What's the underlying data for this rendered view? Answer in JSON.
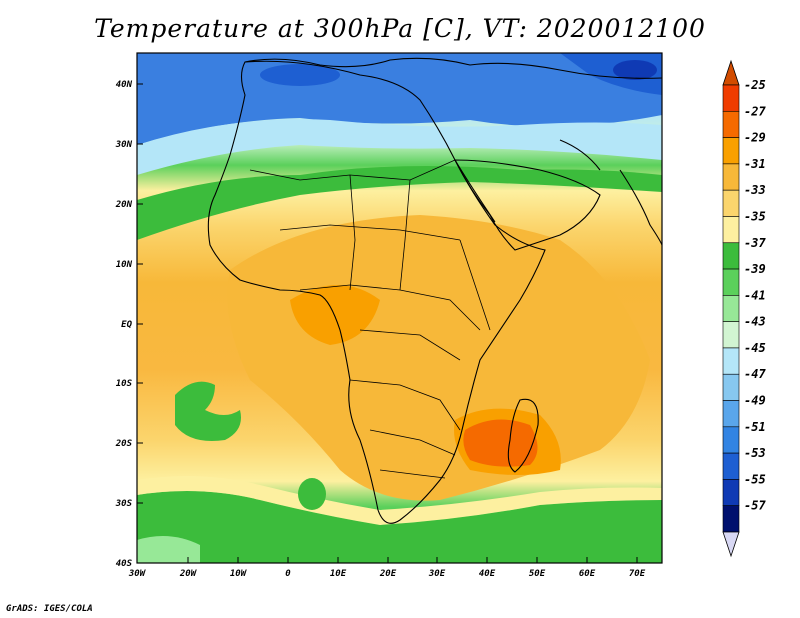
{
  "title": "Temperature at 300hPa [C], VT: 2020012100",
  "credit": "GrADS: IGES/COLA",
  "map": {
    "lat_labels": [
      "40N",
      "30N",
      "20N",
      "10N",
      "EQ",
      "10S",
      "20S",
      "30S",
      "40S"
    ],
    "lon_labels": [
      "30W",
      "20W",
      "10W",
      "0",
      "10E",
      "20E",
      "30E",
      "40E",
      "50E",
      "60E",
      "70E"
    ]
  },
  "colorbar": {
    "labels": [
      "-25",
      "-27",
      "-29",
      "-31",
      "-33",
      "-35",
      "-37",
      "-39",
      "-41",
      "-43",
      "-45",
      "-47",
      "-49",
      "-51",
      "-53",
      "-55",
      "-57"
    ],
    "colors": [
      "#f03c00",
      "#f56a00",
      "#f9a000",
      "#f7b839",
      "#fbd56d",
      "#fdf0a0",
      "#3cbc3c",
      "#5bd05b",
      "#97e897",
      "#d2f5d2",
      "#b4e6f8",
      "#87c8f0",
      "#5aa6eb",
      "#3284e3",
      "#1e5fd2",
      "#0f3ab4",
      "#00106e"
    ],
    "top_arrow_color": "#d24c00",
    "bottom_arrow_color": "#d8d8f4"
  }
}
